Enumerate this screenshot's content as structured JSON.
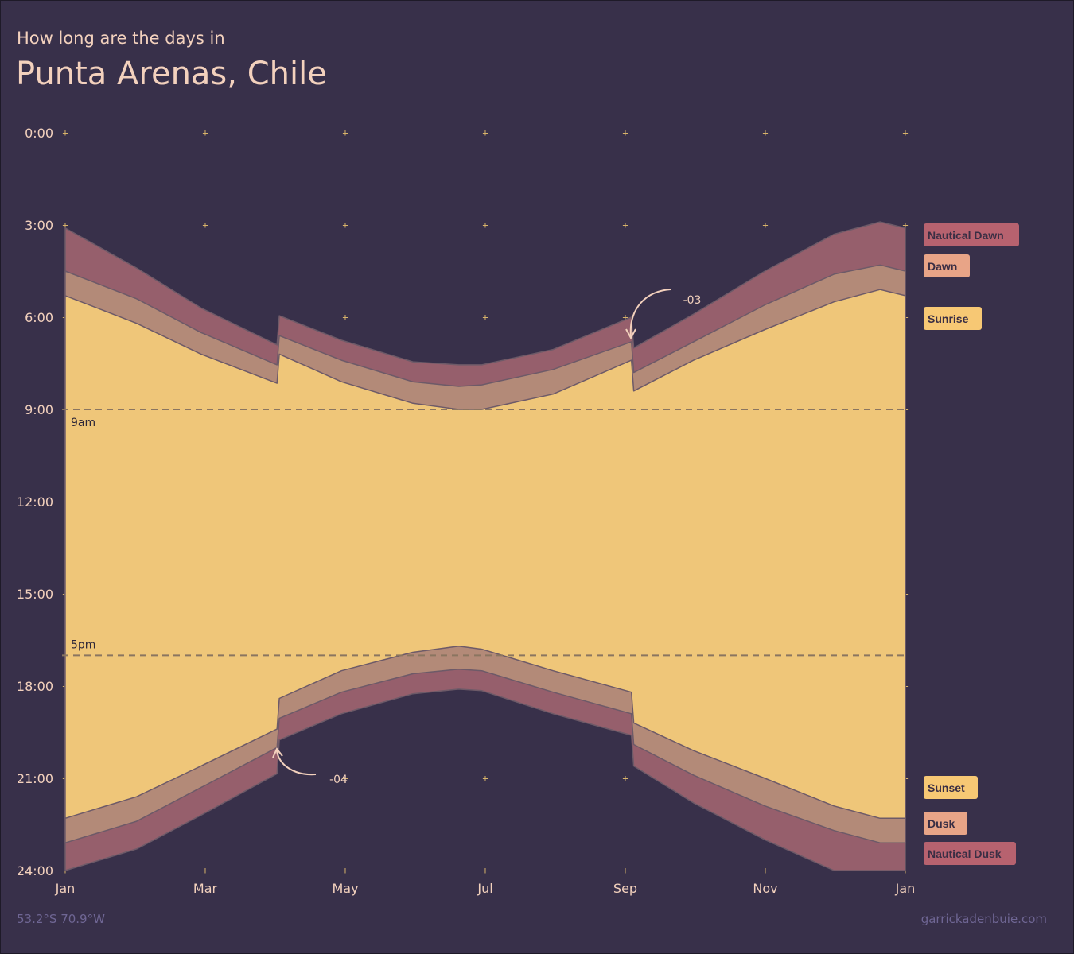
{
  "header": {
    "subtitle": "How long are the days in",
    "title": "Punta Arenas, Chile"
  },
  "footer": {
    "coords": "53.2°S 70.9°W",
    "credit": "garrickadenbuie.com"
  },
  "colors": {
    "background": "#38304a",
    "nautical": "#965f6c",
    "civil": "#b38a78",
    "day": "#efc679",
    "outline": "#6d5a68",
    "accent": "#f3d1bd"
  },
  "chart_data": {
    "type": "area",
    "x_axis": {
      "ticks": [
        "Jan",
        "Mar",
        "May",
        "Jul",
        "Sep",
        "Nov",
        "Jan"
      ],
      "range": [
        "2021-01-01",
        "2022-01-01"
      ]
    },
    "y_axis": {
      "ticks": [
        "0:00",
        "3:00",
        "6:00",
        "9:00",
        "12:00",
        "15:00",
        "18:00",
        "21:00",
        "24:00"
      ],
      "range_hours": [
        0,
        24
      ],
      "inverted": true
    },
    "reference_lines": [
      {
        "label": "9am",
        "hour": 9
      },
      {
        "label": "5pm",
        "hour": 17
      }
    ],
    "annotations": [
      {
        "label": "-03",
        "date": "2021-09-05"
      },
      {
        "label": "-04",
        "date": "2021-04-04"
      }
    ],
    "legend": [
      {
        "label": "Nautical Dawn",
        "color": "#b7626f"
      },
      {
        "label": "Dawn",
        "color": "#e8a487"
      },
      {
        "label": "Sunrise",
        "color": "#f7c874"
      },
      {
        "label": "Sunset",
        "color": "#f7c874"
      },
      {
        "label": "Dusk",
        "color": "#e8a487"
      },
      {
        "label": "Nautical Dusk",
        "color": "#b7626f"
      }
    ],
    "series": [
      {
        "name": "Nautical Dawn",
        "x": [
          "2021-01-01",
          "2021-02-01",
          "2021-03-01",
          "2021-04-03",
          "2021-04-04",
          "2021-05-01",
          "2021-06-01",
          "2021-06-21",
          "2021-07-01",
          "2021-08-01",
          "2021-09-04",
          "2021-09-05",
          "2021-10-01",
          "2021-11-01",
          "2021-12-01",
          "2021-12-21",
          "2022-01-01"
        ],
        "y": [
          3.1,
          4.4,
          5.7,
          6.9,
          5.95,
          6.75,
          7.45,
          7.55,
          7.55,
          7.05,
          6.0,
          7.0,
          5.9,
          4.5,
          3.3,
          2.9,
          3.1
        ]
      },
      {
        "name": "Dawn",
        "x": [
          "2021-01-01",
          "2021-02-01",
          "2021-03-01",
          "2021-04-03",
          "2021-04-04",
          "2021-05-01",
          "2021-06-01",
          "2021-06-21",
          "2021-07-01",
          "2021-08-01",
          "2021-09-04",
          "2021-09-05",
          "2021-10-01",
          "2021-11-01",
          "2021-12-01",
          "2021-12-21",
          "2022-01-01"
        ],
        "y": [
          4.5,
          5.4,
          6.5,
          7.55,
          6.6,
          7.4,
          8.1,
          8.25,
          8.2,
          7.7,
          6.8,
          7.8,
          6.8,
          5.6,
          4.6,
          4.3,
          4.5
        ]
      },
      {
        "name": "Sunrise",
        "x": [
          "2021-01-01",
          "2021-02-01",
          "2021-03-01",
          "2021-04-03",
          "2021-04-04",
          "2021-05-01",
          "2021-06-01",
          "2021-06-21",
          "2021-07-01",
          "2021-08-01",
          "2021-09-04",
          "2021-09-05",
          "2021-10-01",
          "2021-11-01",
          "2021-12-01",
          "2021-12-21",
          "2022-01-01"
        ],
        "y": [
          5.3,
          6.2,
          7.2,
          8.15,
          7.2,
          8.1,
          8.8,
          9.0,
          9.0,
          8.5,
          7.4,
          8.4,
          7.4,
          6.4,
          5.5,
          5.1,
          5.3
        ]
      },
      {
        "name": "Sunset",
        "x": [
          "2021-01-01",
          "2021-02-01",
          "2021-03-01",
          "2021-04-03",
          "2021-04-04",
          "2021-05-01",
          "2021-06-01",
          "2021-06-21",
          "2021-07-01",
          "2021-08-01",
          "2021-09-04",
          "2021-09-05",
          "2021-10-01",
          "2021-11-01",
          "2021-12-01",
          "2021-12-21",
          "2022-01-01"
        ],
        "y": [
          22.3,
          21.6,
          20.6,
          19.4,
          18.4,
          17.5,
          16.9,
          16.7,
          16.8,
          17.5,
          18.2,
          19.2,
          20.1,
          21.0,
          21.9,
          22.3,
          22.3
        ]
      },
      {
        "name": "Dusk",
        "x": [
          "2021-01-01",
          "2021-02-01",
          "2021-03-01",
          "2021-04-03",
          "2021-04-04",
          "2021-05-01",
          "2021-06-01",
          "2021-06-21",
          "2021-07-01",
          "2021-08-01",
          "2021-09-04",
          "2021-09-05",
          "2021-10-01",
          "2021-11-01",
          "2021-12-01",
          "2021-12-21",
          "2022-01-01"
        ],
        "y": [
          23.1,
          22.4,
          21.3,
          20.0,
          19.05,
          18.2,
          17.6,
          17.45,
          17.5,
          18.2,
          18.9,
          19.9,
          20.9,
          21.9,
          22.7,
          23.1,
          23.1
        ]
      },
      {
        "name": "Nautical Dusk",
        "x": [
          "2021-01-01",
          "2021-02-01",
          "2021-03-01",
          "2021-04-03",
          "2021-04-04",
          "2021-05-01",
          "2021-06-01",
          "2021-06-21",
          "2021-07-01",
          "2021-08-01",
          "2021-09-04",
          "2021-09-05",
          "2021-10-01",
          "2021-11-01",
          "2021-12-01",
          "2021-12-21",
          "2022-01-01"
        ],
        "y": [
          24.0,
          23.3,
          22.2,
          20.85,
          19.75,
          18.9,
          18.25,
          18.1,
          18.15,
          18.9,
          19.6,
          20.6,
          21.8,
          23.0,
          24.0,
          24.0,
          24.0
        ]
      }
    ]
  }
}
